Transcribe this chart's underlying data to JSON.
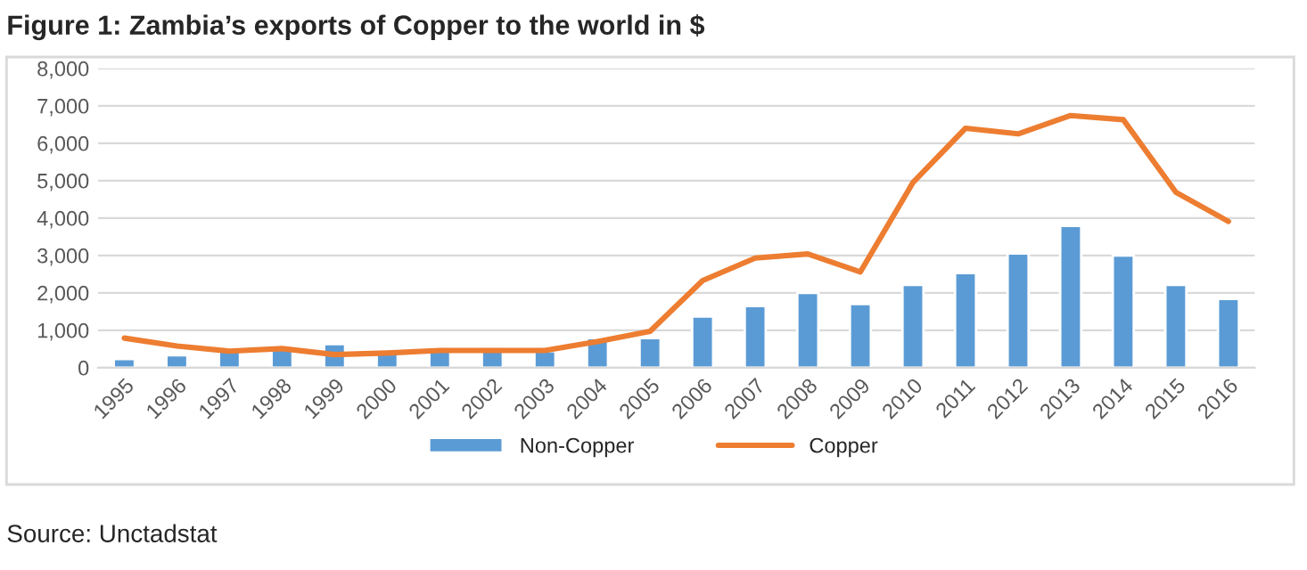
{
  "chart_data": {
    "type": "bar",
    "title": "Figure 1: Zambia’s exports of Copper to the world in $",
    "categories": [
      "1995",
      "1996",
      "1997",
      "1998",
      "1999",
      "2000",
      "2001",
      "2002",
      "2003",
      "2004",
      "2005",
      "2006",
      "2007",
      "2008",
      "2009",
      "2010",
      "2011",
      "2012",
      "2013",
      "2014",
      "2015",
      "2016"
    ],
    "series": [
      {
        "name": "Non-Copper",
        "color": "#5b9bd5",
        "values": [
          230,
          330,
          450,
          480,
          630,
          400,
          440,
          440,
          440,
          790,
          790,
          1370,
          1650,
          2000,
          1700,
          2210,
          2530,
          3050,
          3790,
          3000,
          2210,
          1840
        ]
      },
      {
        "name": "Copper",
        "type": "line",
        "color": "#ed7d31",
        "values": [
          790,
          580,
          440,
          510,
          350,
          390,
          460,
          460,
          460,
          700,
          970,
          2330,
          2930,
          3040,
          2560,
          4950,
          6400,
          6250,
          6740,
          6630,
          4690,
          3910
        ]
      }
    ],
    "ylim": [
      0,
      8000
    ],
    "yticks": [
      {
        "value": 0,
        "label": "0"
      },
      {
        "value": 1000,
        "label": "1,000"
      },
      {
        "value": 2000,
        "label": "2,000"
      },
      {
        "value": 3000,
        "label": "3,000"
      },
      {
        "value": 4000,
        "label": "4,000"
      },
      {
        "value": 5000,
        "label": "5,000"
      },
      {
        "value": 6000,
        "label": "6,000"
      },
      {
        "value": 7000,
        "label": "7,000"
      },
      {
        "value": 8000,
        "label": "8,000"
      }
    ],
    "grid": "y",
    "legend": "bottom",
    "annotations": [
      "Source: Unctadstat"
    ]
  }
}
